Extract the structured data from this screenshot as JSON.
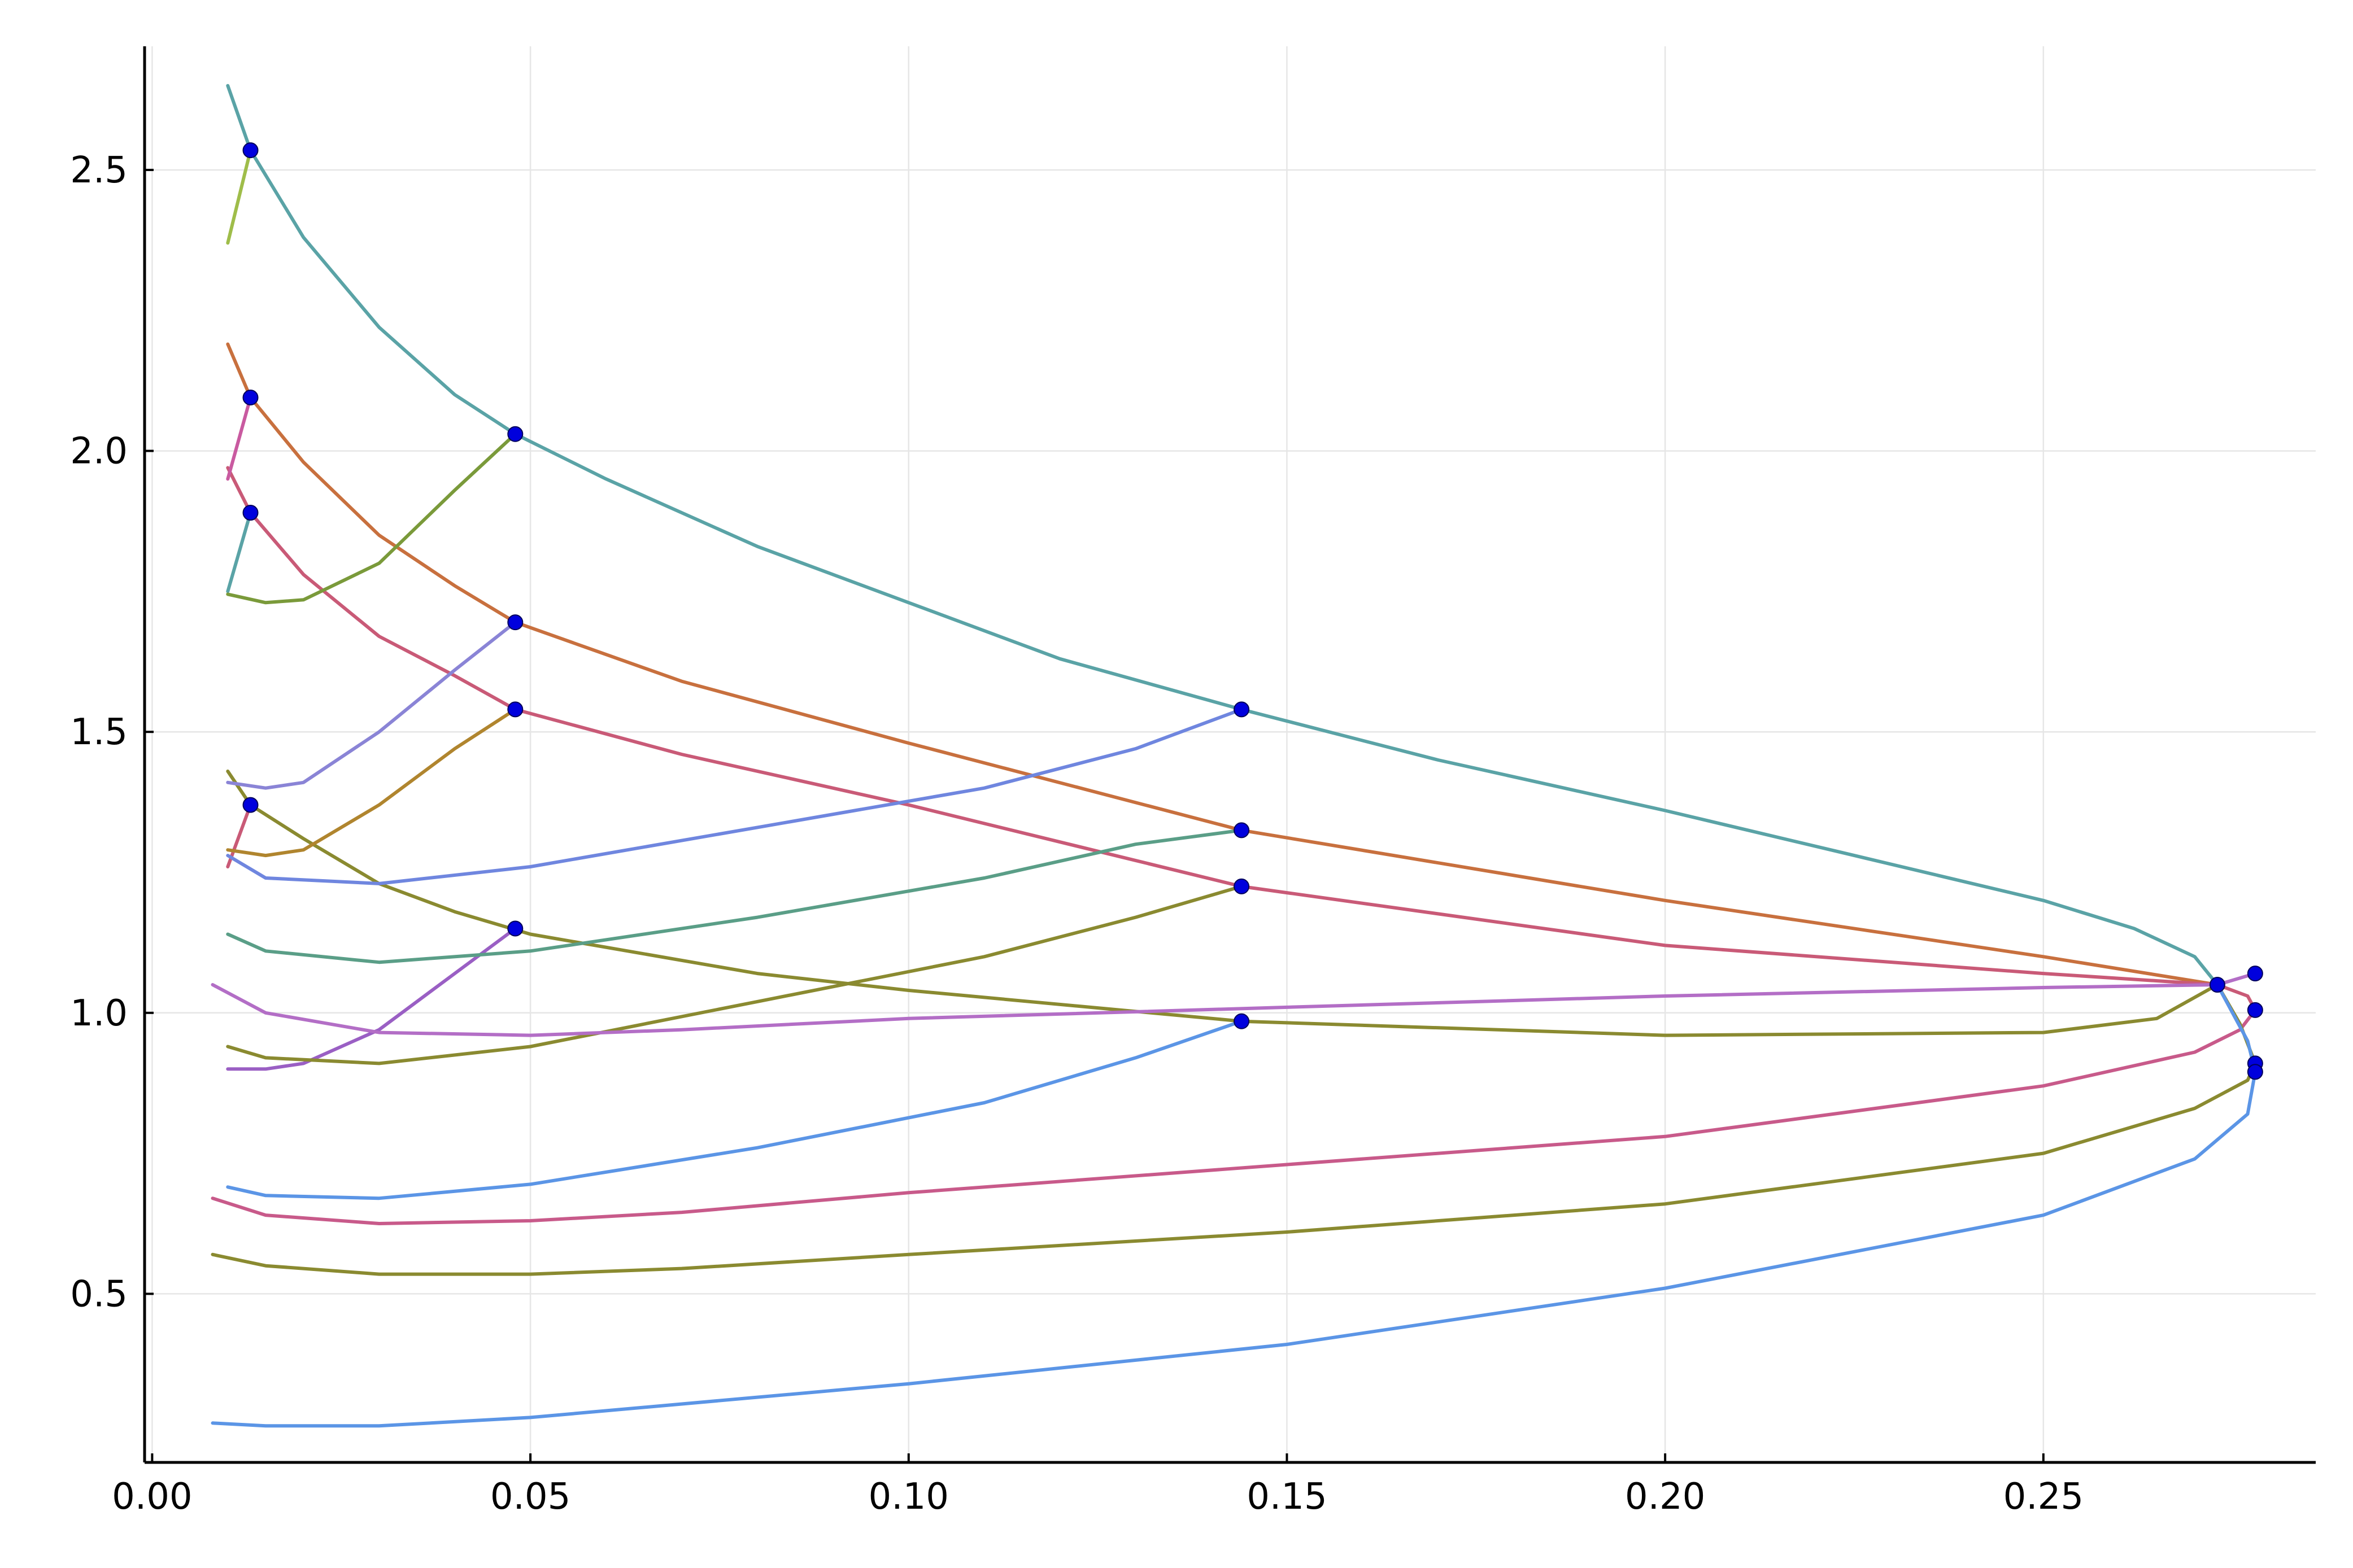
{
  "chart_data": {
    "type": "line",
    "title": "",
    "xlabel": "",
    "ylabel": "",
    "xlim": [
      -0.001,
      0.286
    ],
    "ylim": [
      0.2,
      2.72
    ],
    "grid": true,
    "legend": "none",
    "x_ticks": [
      {
        "value": 0.0,
        "label": "0.00"
      },
      {
        "value": 0.05,
        "label": "0.05"
      },
      {
        "value": 0.1,
        "label": "0.10"
      },
      {
        "value": 0.15,
        "label": "0.15"
      },
      {
        "value": 0.2,
        "label": "0.20"
      },
      {
        "value": 0.25,
        "label": "0.25"
      }
    ],
    "y_ticks": [
      {
        "value": 0.5,
        "label": "0.5"
      },
      {
        "value": 1.0,
        "label": "1.0"
      },
      {
        "value": 1.5,
        "label": "1.5"
      },
      {
        "value": 2.0,
        "label": "2.0"
      },
      {
        "value": 2.5,
        "label": "2.5"
      }
    ],
    "series": [
      {
        "color": "#5aa3a6",
        "points": [
          [
            0.01,
            2.65
          ],
          [
            0.013,
            2.535
          ],
          [
            0.02,
            2.38
          ],
          [
            0.03,
            2.22
          ],
          [
            0.04,
            2.1
          ],
          [
            0.048,
            2.03
          ],
          [
            0.06,
            1.95
          ],
          [
            0.08,
            1.83
          ],
          [
            0.1,
            1.73
          ],
          [
            0.12,
            1.63
          ],
          [
            0.144,
            1.54
          ],
          [
            0.17,
            1.45
          ],
          [
            0.2,
            1.36
          ],
          [
            0.225,
            1.28
          ],
          [
            0.25,
            1.2
          ],
          [
            0.262,
            1.15
          ],
          [
            0.27,
            1.1
          ],
          [
            0.273,
            1.05
          ]
        ]
      },
      {
        "color": "#c8703e",
        "points": [
          [
            0.01,
            2.19
          ],
          [
            0.013,
            2.095
          ],
          [
            0.02,
            1.98
          ],
          [
            0.03,
            1.85
          ],
          [
            0.04,
            1.76
          ],
          [
            0.048,
            1.695
          ],
          [
            0.07,
            1.59
          ],
          [
            0.1,
            1.48
          ],
          [
            0.144,
            1.325
          ],
          [
            0.2,
            1.2
          ],
          [
            0.25,
            1.1
          ],
          [
            0.273,
            1.05
          ]
        ]
      },
      {
        "color": "#c95a77",
        "points": [
          [
            0.01,
            1.97
          ],
          [
            0.013,
            1.89
          ],
          [
            0.02,
            1.78
          ],
          [
            0.03,
            1.67
          ],
          [
            0.04,
            1.6
          ],
          [
            0.048,
            1.54
          ],
          [
            0.07,
            1.46
          ],
          [
            0.1,
            1.37
          ],
          [
            0.144,
            1.225
          ],
          [
            0.2,
            1.12
          ],
          [
            0.25,
            1.07
          ],
          [
            0.273,
            1.05
          ]
        ]
      },
      {
        "color": "#8a8a30",
        "points": [
          [
            0.01,
            1.43
          ],
          [
            0.013,
            1.37
          ],
          [
            0.02,
            1.31
          ],
          [
            0.03,
            1.23
          ],
          [
            0.04,
            1.18
          ],
          [
            0.05,
            1.14
          ],
          [
            0.08,
            1.07
          ],
          [
            0.1,
            1.04
          ],
          [
            0.144,
            0.985
          ],
          [
            0.2,
            0.96
          ],
          [
            0.25,
            0.965
          ],
          [
            0.265,
            0.99
          ],
          [
            0.273,
            1.05
          ]
        ]
      },
      {
        "color": "#9fbd4a",
        "points": [
          [
            0.01,
            2.37
          ],
          [
            0.013,
            2.535
          ]
        ]
      },
      {
        "color": "#c95aa0",
        "points": [
          [
            0.01,
            1.95
          ],
          [
            0.013,
            2.095
          ]
        ]
      },
      {
        "color": "#5aa3a6",
        "points": [
          [
            0.01,
            1.75
          ],
          [
            0.013,
            1.89
          ]
        ]
      },
      {
        "color": "#c95a77",
        "points": [
          [
            0.01,
            1.26
          ],
          [
            0.013,
            1.37
          ]
        ]
      },
      {
        "color": "#7a9a3a",
        "points": [
          [
            0.01,
            1.745
          ],
          [
            0.015,
            1.73
          ],
          [
            0.02,
            1.735
          ],
          [
            0.03,
            1.8
          ],
          [
            0.04,
            1.93
          ],
          [
            0.048,
            2.03
          ]
        ]
      },
      {
        "color": "#8a84d6",
        "points": [
          [
            0.01,
            1.41
          ],
          [
            0.015,
            1.4
          ],
          [
            0.02,
            1.41
          ],
          [
            0.03,
            1.5
          ],
          [
            0.04,
            1.61
          ],
          [
            0.048,
            1.695
          ]
        ]
      },
      {
        "color": "#b0852e",
        "points": [
          [
            0.01,
            1.29
          ],
          [
            0.015,
            1.28
          ],
          [
            0.02,
            1.29
          ],
          [
            0.03,
            1.37
          ],
          [
            0.04,
            1.47
          ],
          [
            0.048,
            1.54
          ]
        ]
      },
      {
        "color": "#9a5fc4",
        "points": [
          [
            0.01,
            0.9
          ],
          [
            0.015,
            0.9
          ],
          [
            0.02,
            0.91
          ],
          [
            0.03,
            0.97
          ],
          [
            0.04,
            1.07
          ],
          [
            0.048,
            1.15
          ]
        ]
      },
      {
        "color": "#6f86df",
        "points": [
          [
            0.01,
            1.28
          ],
          [
            0.015,
            1.24
          ],
          [
            0.03,
            1.23
          ],
          [
            0.05,
            1.26
          ],
          [
            0.08,
            1.33
          ],
          [
            0.11,
            1.4
          ],
          [
            0.13,
            1.47
          ],
          [
            0.144,
            1.54
          ]
        ]
      },
      {
        "color": "#5a9e87",
        "points": [
          [
            0.01,
            1.14
          ],
          [
            0.015,
            1.11
          ],
          [
            0.03,
            1.09
          ],
          [
            0.05,
            1.11
          ],
          [
            0.08,
            1.17
          ],
          [
            0.11,
            1.24
          ],
          [
            0.13,
            1.3
          ],
          [
            0.144,
            1.325
          ]
        ]
      },
      {
        "color": "#8a8a30",
        "points": [
          [
            0.01,
            0.94
          ],
          [
            0.015,
            0.92
          ],
          [
            0.03,
            0.91
          ],
          [
            0.05,
            0.94
          ],
          [
            0.08,
            1.02
          ],
          [
            0.11,
            1.1
          ],
          [
            0.13,
            1.17
          ],
          [
            0.144,
            1.225
          ]
        ]
      },
      {
        "color": "#5b95e6",
        "points": [
          [
            0.01,
            0.69
          ],
          [
            0.015,
            0.675
          ],
          [
            0.03,
            0.67
          ],
          [
            0.05,
            0.695
          ],
          [
            0.08,
            0.76
          ],
          [
            0.11,
            0.84
          ],
          [
            0.13,
            0.92
          ],
          [
            0.144,
            0.985
          ]
        ]
      },
      {
        "color": "#b36ec6",
        "points": [
          [
            0.008,
            1.05
          ],
          [
            0.015,
            1.0
          ],
          [
            0.03,
            0.965
          ],
          [
            0.05,
            0.96
          ],
          [
            0.07,
            0.97
          ],
          [
            0.1,
            0.99
          ],
          [
            0.15,
            1.01
          ],
          [
            0.2,
            1.03
          ],
          [
            0.25,
            1.045
          ],
          [
            0.273,
            1.05
          ],
          [
            0.278,
            1.07
          ]
        ]
      },
      {
        "color": "#c85a8a",
        "points": [
          [
            0.008,
            0.67
          ],
          [
            0.015,
            0.64
          ],
          [
            0.03,
            0.625
          ],
          [
            0.05,
            0.63
          ],
          [
            0.07,
            0.645
          ],
          [
            0.1,
            0.68
          ],
          [
            0.15,
            0.73
          ],
          [
            0.2,
            0.78
          ],
          [
            0.25,
            0.87
          ],
          [
            0.27,
            0.93
          ],
          [
            0.276,
            0.97
          ],
          [
            0.278,
            1.005
          ]
        ]
      },
      {
        "color": "#8a8a30",
        "points": [
          [
            0.008,
            0.57
          ],
          [
            0.015,
            0.55
          ],
          [
            0.03,
            0.535
          ],
          [
            0.05,
            0.535
          ],
          [
            0.07,
            0.545
          ],
          [
            0.1,
            0.57
          ],
          [
            0.15,
            0.61
          ],
          [
            0.2,
            0.66
          ],
          [
            0.25,
            0.75
          ],
          [
            0.27,
            0.83
          ],
          [
            0.277,
            0.88
          ],
          [
            0.278,
            0.91
          ]
        ]
      },
      {
        "color": "#5b95e6",
        "points": [
          [
            0.008,
            0.27
          ],
          [
            0.015,
            0.265
          ],
          [
            0.03,
            0.265
          ],
          [
            0.05,
            0.28
          ],
          [
            0.1,
            0.34
          ],
          [
            0.15,
            0.41
          ],
          [
            0.2,
            0.51
          ],
          [
            0.25,
            0.64
          ],
          [
            0.27,
            0.74
          ],
          [
            0.277,
            0.82
          ],
          [
            0.278,
            0.895
          ]
        ]
      },
      {
        "color": "#c95a77",
        "points": [
          [
            0.273,
            1.05
          ],
          [
            0.277,
            1.03
          ],
          [
            0.278,
            1.005
          ]
        ]
      },
      {
        "color": "#8a8a30",
        "points": [
          [
            0.273,
            1.05
          ],
          [
            0.276,
            0.98
          ],
          [
            0.278,
            0.91
          ]
        ]
      },
      {
        "color": "#5b95e6",
        "points": [
          [
            0.273,
            1.05
          ],
          [
            0.277,
            0.95
          ],
          [
            0.278,
            0.895
          ]
        ]
      }
    ],
    "markers": {
      "color": "#0000dd",
      "points": [
        [
          0.013,
          2.535
        ],
        [
          0.013,
          2.095
        ],
        [
          0.013,
          1.89
        ],
        [
          0.013,
          1.37
        ],
        [
          0.048,
          2.03
        ],
        [
          0.048,
          1.695
        ],
        [
          0.048,
          1.54
        ],
        [
          0.048,
          1.15
        ],
        [
          0.144,
          1.54
        ],
        [
          0.144,
          1.325
        ],
        [
          0.144,
          1.225
        ],
        [
          0.144,
          0.985
        ],
        [
          0.273,
          1.05
        ],
        [
          0.278,
          1.07
        ],
        [
          0.278,
          1.005
        ],
        [
          0.278,
          0.91
        ],
        [
          0.278,
          0.895
        ]
      ]
    }
  }
}
